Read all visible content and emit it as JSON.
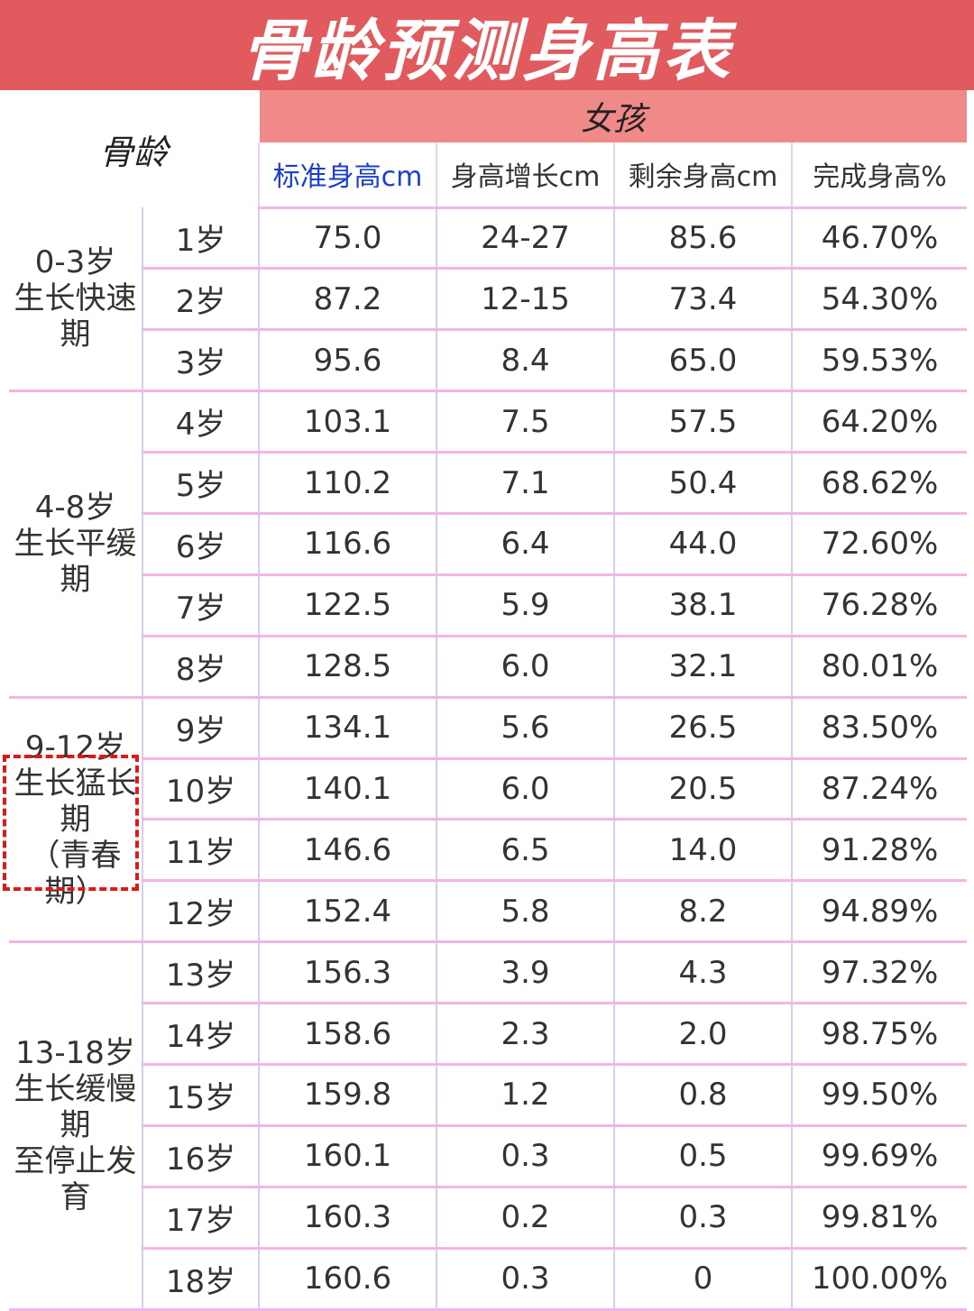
{
  "title": "骨龄预测身高表",
  "header": {
    "bone_age": "骨龄",
    "gender": "女孩",
    "columns": [
      "标准身高cm",
      "身高增长cm",
      "剩余身高cm",
      "完成身高%"
    ]
  },
  "groups": [
    {
      "range": "0-3岁",
      "label": "生长快速期",
      "note": "",
      "rows": 3,
      "highlighted": false
    },
    {
      "range": "4-8岁",
      "label": "生长平缓期",
      "note": "",
      "rows": 5,
      "highlighted": false
    },
    {
      "range": "9-12岁",
      "label": "生长猛长期",
      "note": "（青春期）",
      "rows": 4,
      "highlighted": true
    },
    {
      "range": "13-18岁",
      "label": "生长缓慢期",
      "note": "至停止发育",
      "rows": 6,
      "highlighted": false
    }
  ],
  "rows": [
    [
      "1岁",
      "75.0",
      "24-27",
      "85.6",
      "46.70%"
    ],
    [
      "2岁",
      "87.2",
      "12-15",
      "73.4",
      "54.30%"
    ],
    [
      "3岁",
      "95.6",
      "8.4",
      "65.0",
      "59.53%"
    ],
    [
      "4岁",
      "103.1",
      "7.5",
      "57.5",
      "64.20%"
    ],
    [
      "5岁",
      "110.2",
      "7.1",
      "50.4",
      "68.62%"
    ],
    [
      "6岁",
      "116.6",
      "6.4",
      "44.0",
      "72.60%"
    ],
    [
      "7岁",
      "122.5",
      "5.9",
      "38.1",
      "76.28%"
    ],
    [
      "8岁",
      "128.5",
      "6.0",
      "32.1",
      "80.01%"
    ],
    [
      "9岁",
      "134.1",
      "5.6",
      "26.5",
      "83.50%"
    ],
    [
      "10岁",
      "140.1",
      "6.0",
      "20.5",
      "87.24%"
    ],
    [
      "11岁",
      "146.6",
      "6.5",
      "14.0",
      "91.28%"
    ],
    [
      "12岁",
      "152.4",
      "5.8",
      "8.2",
      "94.89%"
    ],
    [
      "13岁",
      "156.3",
      "3.9",
      "4.3",
      "97.32%"
    ],
    [
      "14岁",
      "158.6",
      "2.3",
      "2.0",
      "98.75%"
    ],
    [
      "15岁",
      "159.8",
      "1.2",
      "0.8",
      "99.50%"
    ],
    [
      "16岁",
      "160.1",
      "0.3",
      "0.5",
      "99.69%"
    ],
    [
      "17岁",
      "160.3",
      "0.2",
      "0.3",
      "99.81%"
    ],
    [
      "18岁",
      "160.6",
      "0.3",
      "0",
      "100.00%"
    ]
  ],
  "colors": {
    "title_bar": "#e05a5e",
    "gender_band": "#f08a88",
    "standard_height": "#1a3fd0",
    "highlight_box": "#e01818",
    "grid": "#f2b6e6"
  }
}
